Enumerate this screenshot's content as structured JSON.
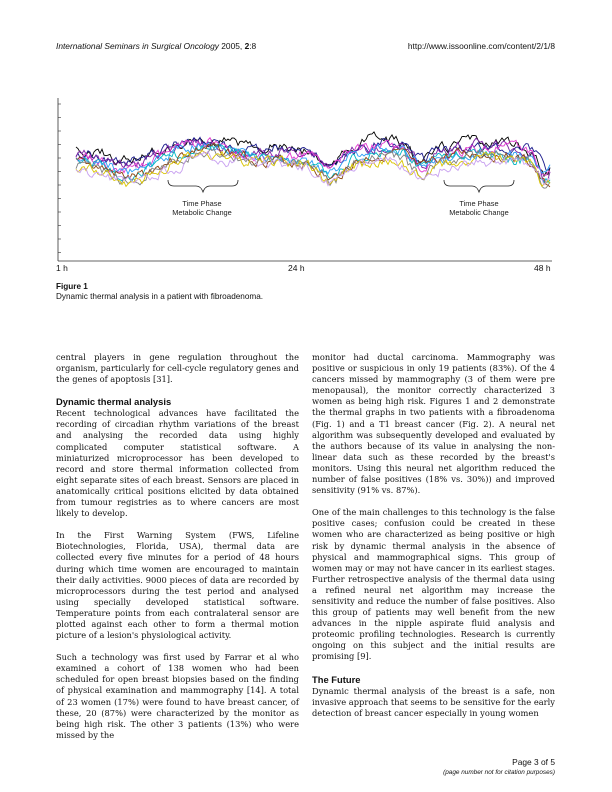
{
  "header": {
    "journal": "International Seminars in Surgical Oncology",
    "year_volume": " 2005, ",
    "issue": "2",
    "article": ":8",
    "url": "http://www.issoonline.com/content/2/1/8"
  },
  "figure": {
    "title": "Figure 1",
    "caption": "Dynamic thermal analysis in a patient with fibroadenoma.",
    "x_labels": [
      "1 h",
      "24 h",
      "48 h"
    ],
    "annotations": [
      {
        "line1": "Time Phase",
        "line2": "Metabolic Change"
      },
      {
        "line1": "Time Phase",
        "line2": "Metabolic Change"
      }
    ],
    "series_colors": [
      "#000000",
      "#1a1a8c",
      "#7a1fa2",
      "#e23ad0",
      "#2a9df4",
      "#00b7c3",
      "#8b4513",
      "#808080",
      "#d9c400",
      "#c8a0f0"
    ]
  },
  "body": {
    "left": {
      "p1": "central players in gene regulation throughout the organism, particularly for cell-cycle regulatory genes and the genes of apoptosis [31].",
      "h_dynamic": "Dynamic thermal analysis",
      "p2": "Recent technological advances have facilitated the recording of circadian rhythm variations of the breast and analysing the recorded data using highly complicated computer statistical software. A miniaturized microprocessor has been developed to record and store thermal information collected from eight separate sites of each breast. Sensors are placed in anatomically critical positions elicited by data obtained from tumour registries as to where cancers are most likely to develop.",
      "p3": "In the First Warning System (FWS, Lifeline Biotechnologies, Florida, USA), thermal data are collected every five minutes for a period of 48 hours during which time women are encouraged to maintain their daily activities. 9000 pieces of data are recorded by microprocessors during the test period and analysed using specially developed statistical software. Temperature points from each contralateral sensor are plotted against each other to form a thermal motion picture of a lesion's physiological activity.",
      "p4": "Such a technology was first used by Farrar et al who examined a cohort of 138 women who had been scheduled for open breast biopsies based on the finding of physical examination and mammography [14]. A total of 23 women (17%) were found to have breast cancer, of these, 20 (87%) were characterized by the monitor as being high risk. The other 3 patients (13%) who were missed by the"
    },
    "right": {
      "p1": "monitor had ductal carcinoma. Mammography was positive or suspicious in only 19 patients (83%). Of the 4 cancers missed by mammography (3 of them were pre menopausal), the monitor correctly characterized 3 women as being high risk. Figures 1 and 2 demonstrate the thermal graphs in two patients with a fibroadenoma (Fig. 1) and a T1 breast cancer (Fig. 2). A neural net algorithm was subsequently developed and evaluated by the authors because of its value in analysing the non-linear data such as these recorded by the breast's monitors. Using this neural net algorithm reduced the number of false positives (18% vs. 30%)) and improved sensitivity (91% vs. 87%).",
      "p2": "One of the main challenges to this technology is the false positive cases; confusion could be created in these women who are characterized as being positive or high risk by dynamic thermal analysis in the absence of physical and mammographical signs. This group of women may or may not have cancer in its earliest stages. Further retrospective analysis of the thermal data using a refined neural net algorithm may increase the sensitivity and reduce the number of false positives. Also this group of patients may well benefit from the new advances in the nipple aspirate fluid analysis and proteomic profiling technologies. Research is currently ongoing on this subject and the initial results are promising [9].",
      "h_future": "The Future",
      "p3": "Dynamic thermal analysis of the breast is a safe, non invasive approach that seems to be sensitive for the early detection of breast cancer especially in young women"
    }
  },
  "footer": {
    "page": "Page 3 of 5",
    "note": "(page number not for citation purposes)"
  }
}
